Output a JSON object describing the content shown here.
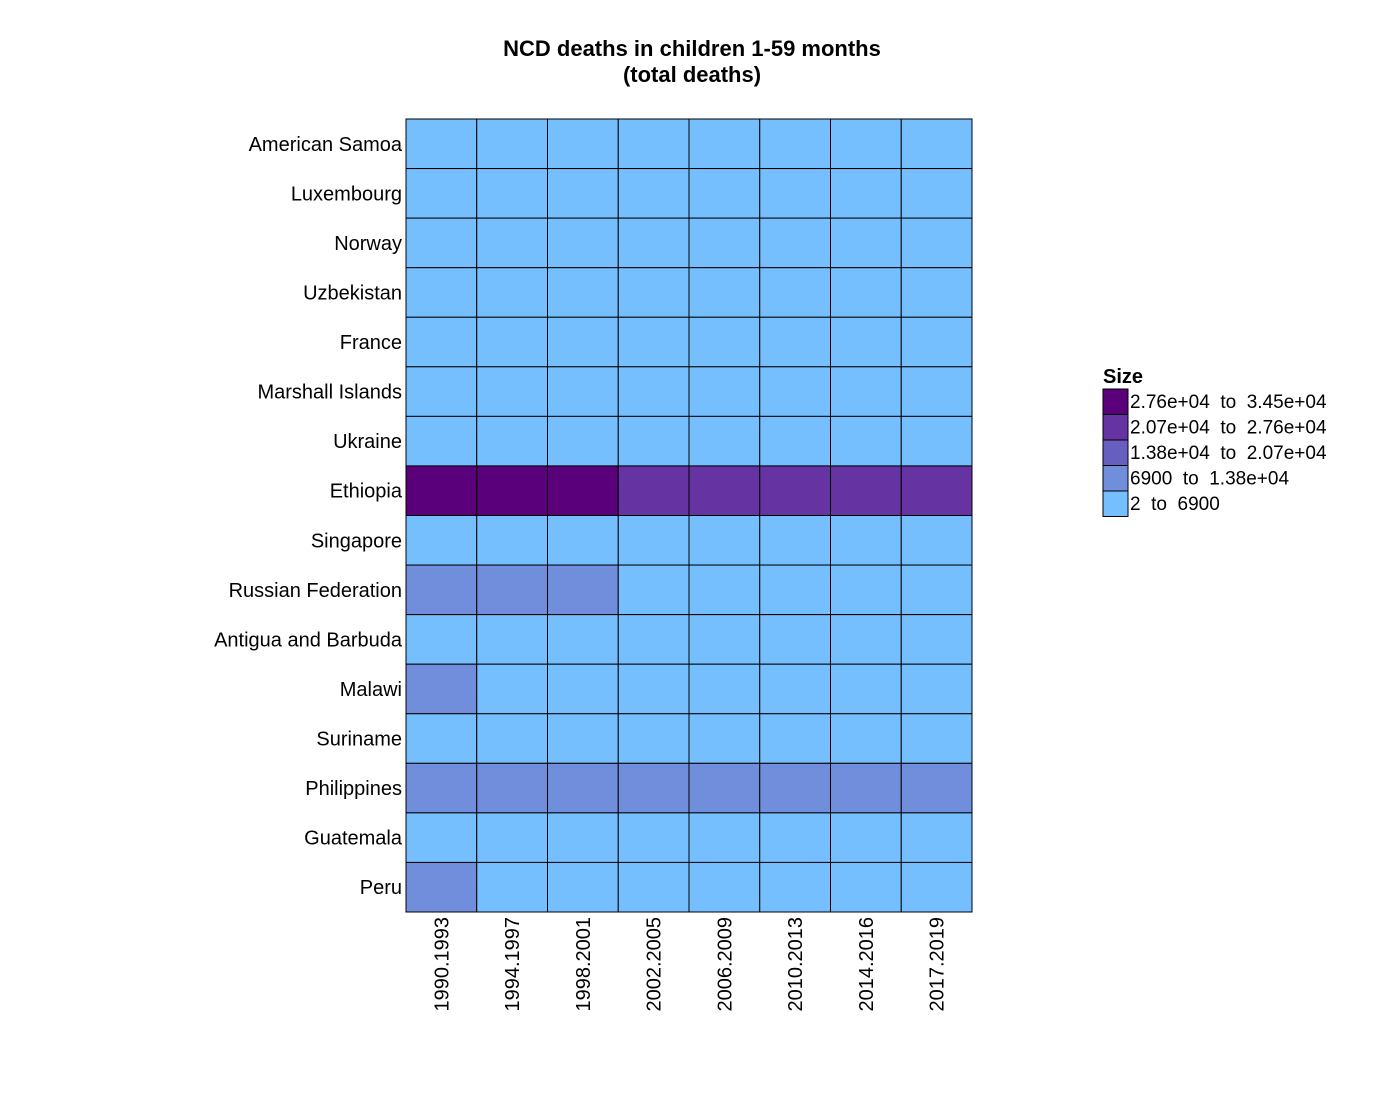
{
  "chart_data": {
    "type": "heatmap",
    "title": "NCD deaths in children 1-59 months",
    "subtitle": "(total deaths)",
    "columns": [
      "1990.1993",
      "1994.1997",
      "1998.2001",
      "2002.2005",
      "2006.2009",
      "2010.2013",
      "2014.2016",
      "2017.2019"
    ],
    "rows": [
      "American Samoa",
      "Luxembourg",
      "Norway",
      "Uzbekistan",
      "France",
      "Marshall Islands",
      "Ukraine",
      "Ethiopia",
      "Singapore",
      "Russian Federation",
      "Antigua and Barbuda",
      "Malawi",
      "Suriname",
      "Philippines",
      "Guatemala",
      "Peru"
    ],
    "bins": [
      {
        "label": "2.76e+04  to  3.45e+04",
        "color": "#5b007b"
      },
      {
        "label": "2.07e+04  to  2.76e+04",
        "color": "#6533a2"
      },
      {
        "label": "1.38e+04  to  2.07e+04",
        "color": "#675fbf"
      },
      {
        "label": "6900  to  1.38e+04",
        "color": "#718edc"
      },
      {
        "label": "2  to  6900",
        "color": "#76bfff"
      }
    ],
    "cells": [
      [
        4,
        4,
        4,
        4,
        4,
        4,
        4,
        4
      ],
      [
        4,
        4,
        4,
        4,
        4,
        4,
        4,
        4
      ],
      [
        4,
        4,
        4,
        4,
        4,
        4,
        4,
        4
      ],
      [
        4,
        4,
        4,
        4,
        4,
        4,
        4,
        4
      ],
      [
        4,
        4,
        4,
        4,
        4,
        4,
        4,
        4
      ],
      [
        4,
        4,
        4,
        4,
        4,
        4,
        4,
        4
      ],
      [
        4,
        4,
        4,
        4,
        4,
        4,
        4,
        4
      ],
      [
        0,
        0,
        0,
        1,
        1,
        1,
        1,
        1
      ],
      [
        4,
        4,
        4,
        4,
        4,
        4,
        4,
        4
      ],
      [
        3,
        3,
        3,
        4,
        4,
        4,
        4,
        4
      ],
      [
        4,
        4,
        4,
        4,
        4,
        4,
        4,
        4
      ],
      [
        3,
        4,
        4,
        4,
        4,
        4,
        4,
        4
      ],
      [
        4,
        4,
        4,
        4,
        4,
        4,
        4,
        4
      ],
      [
        3,
        3,
        3,
        3,
        3,
        3,
        3,
        3
      ],
      [
        4,
        4,
        4,
        4,
        4,
        4,
        4,
        4
      ],
      [
        3,
        4,
        4,
        4,
        4,
        4,
        4,
        4
      ]
    ],
    "legend": {
      "title": "Size",
      "position": "right"
    }
  }
}
